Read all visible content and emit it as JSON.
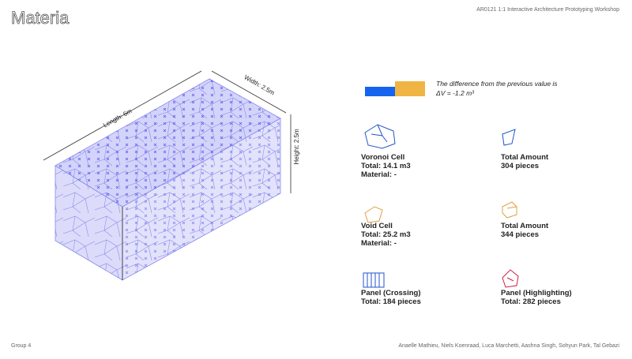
{
  "header": {
    "title": "Materia",
    "course": "AR0121 1:1 Interactive Architecture Prototyping Workshop"
  },
  "diagram": {
    "length": "Length: 6m",
    "width": "Width: 2.5m",
    "height": "Height: 2.5m"
  },
  "legend": {
    "caption": [
      "The difference from the previous value is",
      "ΔV = -1.2 m³"
    ]
  },
  "items": [
    {
      "lines": [
        "Voronoi Cell",
        "Total: 14.1 m3",
        "Material: -"
      ]
    },
    {
      "lines": [
        "Total Amount",
        "304 pieces"
      ]
    },
    {
      "lines": [
        "Void Cell",
        "Total: 25.2 m3",
        "Material: -"
      ]
    },
    {
      "lines": [
        "Total Amount",
        "344 pieces"
      ]
    },
    {
      "lines": [
        "Panel (Crossing)",
        "Total: 184 pieces"
      ]
    },
    {
      "lines": [
        "Panel (Highlighting)",
        "Total: 282 pieces"
      ]
    }
  ],
  "footer": {
    "group": "Group 4",
    "authors": "Anaelle Mathieu, Niels Koenraad, Luca Marchetti, Aashna Singh, Sohyun Park, Tal Gebazi"
  }
}
